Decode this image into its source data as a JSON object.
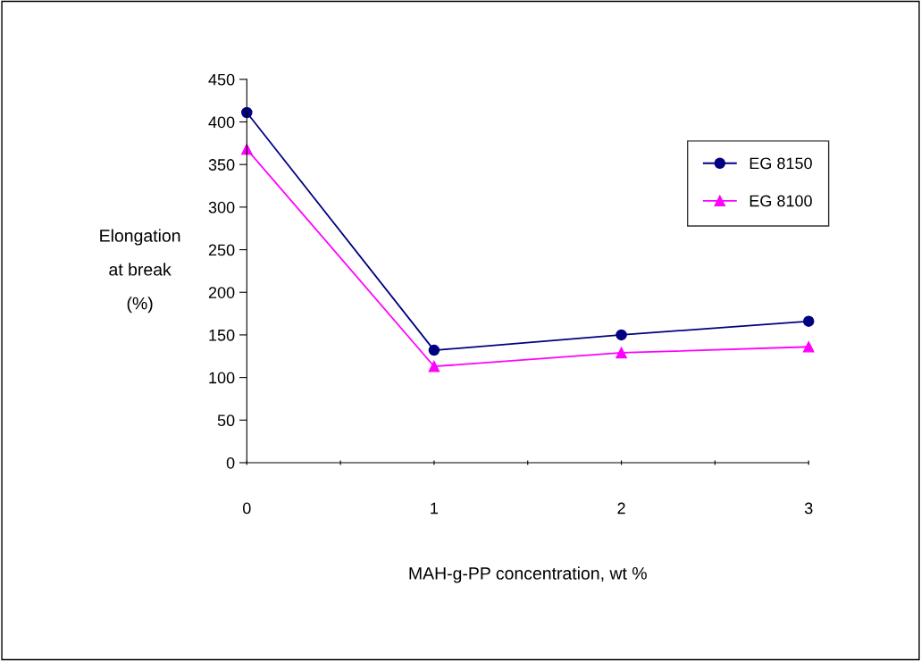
{
  "chart_data": {
    "type": "line",
    "xlabel": "MAH-g-PP concentration, wt %",
    "ylabel": "Elongation\nat break\n(%)",
    "x": [
      0,
      1,
      2,
      3
    ],
    "series": [
      {
        "name": "EG 8150",
        "color": "#000080",
        "marker": "circle",
        "values": [
          411,
          132,
          150,
          166
        ]
      },
      {
        "name": "EG 8100",
        "color": "#ff00ff",
        "marker": "triangle",
        "values": [
          368,
          113,
          129,
          136
        ]
      }
    ],
    "xlim": [
      0,
      3
    ],
    "xticks": [
      0,
      {
        "value": 0.5,
        "label": null
      },
      1,
      {
        "value": 1.5,
        "label": null
      },
      2,
      {
        "value": 2.5,
        "label": null
      },
      3
    ],
    "ylim": [
      0,
      450
    ],
    "yticks": [
      0,
      50,
      100,
      150,
      200,
      250,
      300,
      350,
      400,
      450
    ],
    "grid": false,
    "legend": "top right"
  }
}
